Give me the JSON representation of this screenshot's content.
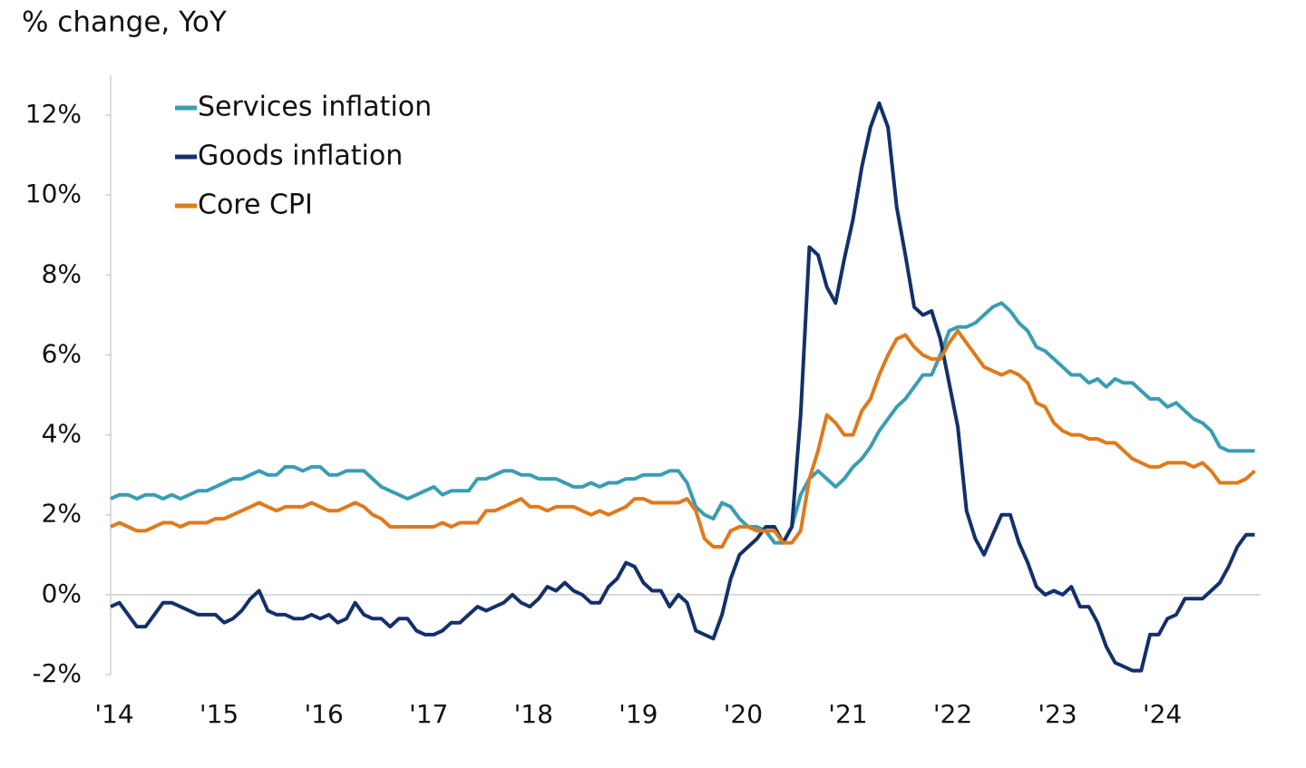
{
  "chart_data": {
    "type": "line",
    "title": "% change, YoY",
    "categories": [
      "'14",
      null,
      null,
      null,
      null,
      null,
      null,
      null,
      null,
      null,
      null,
      null,
      "'15",
      null,
      null,
      null,
      null,
      null,
      null,
      null,
      null,
      null,
      null,
      null,
      "'16",
      null,
      null,
      null,
      null,
      null,
      null,
      null,
      null,
      null,
      null,
      null,
      "'17",
      null,
      null,
      null,
      null,
      null,
      null,
      null,
      null,
      null,
      null,
      null,
      "'18",
      null,
      null,
      null,
      null,
      null,
      null,
      null,
      null,
      null,
      null,
      null,
      "'19",
      null,
      null,
      null,
      null,
      null,
      null,
      null,
      null,
      null,
      null,
      null,
      "'20",
      null,
      null,
      null,
      null,
      null,
      null,
      null,
      null,
      null,
      null,
      null,
      "'21",
      null,
      null,
      null,
      null,
      null,
      null,
      null,
      null,
      null,
      null,
      null,
      "'22",
      null,
      null,
      null,
      null,
      null,
      null,
      null,
      null,
      null,
      null,
      null,
      "'23",
      null,
      null,
      null,
      null,
      null,
      null,
      null,
      null,
      null,
      null,
      null,
      "'24",
      null,
      null,
      null,
      null,
      null,
      null,
      null,
      null,
      null,
      null,
      null
    ],
    "series": [
      {
        "name": "Services inflation",
        "color": "#3a9db4",
        "values": [
          2.4,
          2.5,
          2.5,
          2.4,
          2.5,
          2.5,
          2.4,
          2.5,
          2.4,
          2.5,
          2.6,
          2.6,
          2.7,
          2.8,
          2.9,
          2.9,
          3.0,
          3.1,
          3.0,
          3.0,
          3.2,
          3.2,
          3.1,
          3.2,
          3.2,
          3.0,
          3.0,
          3.1,
          3.1,
          3.1,
          2.9,
          2.7,
          2.6,
          2.5,
          2.4,
          2.5,
          2.6,
          2.7,
          2.5,
          2.6,
          2.6,
          2.6,
          2.9,
          2.9,
          3.0,
          3.1,
          3.1,
          3.0,
          3.0,
          2.9,
          2.9,
          2.9,
          2.8,
          2.7,
          2.7,
          2.8,
          2.7,
          2.8,
          2.8,
          2.9,
          2.9,
          3.0,
          3.0,
          3.0,
          3.1,
          3.1,
          2.8,
          2.2,
          2.0,
          1.9,
          2.3,
          2.2,
          1.9,
          1.7,
          1.7,
          1.6,
          1.3,
          1.3,
          1.7,
          2.5,
          2.9,
          3.1,
          2.9,
          2.7,
          2.9,
          3.2,
          3.4,
          3.7,
          4.1,
          4.4,
          4.7,
          4.9,
          5.2,
          5.5,
          5.5,
          6.0,
          6.6,
          6.7,
          6.7,
          6.8,
          7.0,
          7.2,
          7.3,
          7.1,
          6.8,
          6.6,
          6.2,
          6.1,
          5.9,
          5.7,
          5.5,
          5.5,
          5.3,
          5.4,
          5.2,
          5.4,
          5.3,
          5.3,
          5.1,
          4.9,
          4.9,
          4.7,
          4.8,
          4.6,
          4.4,
          4.3,
          4.1,
          3.7,
          3.6,
          3.6,
          3.6,
          3.6
        ]
      },
      {
        "name": "Goods inflation",
        "color": "#14306a",
        "values": [
          -0.3,
          -0.2,
          -0.5,
          -0.8,
          -0.8,
          -0.5,
          -0.2,
          -0.2,
          -0.3,
          -0.4,
          -0.5,
          -0.5,
          -0.5,
          -0.7,
          -0.6,
          -0.4,
          -0.1,
          0.1,
          -0.4,
          -0.5,
          -0.5,
          -0.6,
          -0.6,
          -0.5,
          -0.6,
          -0.5,
          -0.7,
          -0.6,
          -0.2,
          -0.5,
          -0.6,
          -0.6,
          -0.8,
          -0.6,
          -0.6,
          -0.9,
          -1.0,
          -1.0,
          -0.9,
          -0.7,
          -0.7,
          -0.5,
          -0.3,
          -0.4,
          -0.3,
          -0.2,
          0.0,
          -0.2,
          -0.3,
          -0.1,
          0.2,
          0.1,
          0.3,
          0.1,
          0.0,
          -0.2,
          -0.2,
          0.2,
          0.4,
          0.8,
          0.7,
          0.3,
          0.1,
          0.1,
          -0.3,
          0.0,
          -0.2,
          -0.9,
          -1.0,
          -1.1,
          -0.5,
          0.4,
          1.0,
          1.2,
          1.4,
          1.7,
          1.7,
          1.3,
          1.7,
          4.5,
          8.7,
          8.5,
          7.7,
          7.3,
          8.4,
          9.4,
          10.7,
          11.7,
          12.3,
          11.7,
          9.7,
          8.5,
          7.2,
          7.0,
          7.1,
          6.4,
          5.3,
          4.2,
          2.1,
          1.4,
          1.0,
          1.5,
          2.0,
          2.0,
          1.3,
          0.8,
          0.2,
          0.0,
          0.1,
          0.0,
          0.2,
          -0.3,
          -0.3,
          -0.7,
          -1.3,
          -1.7,
          -1.8,
          -1.9,
          -1.9,
          -1.0,
          -1.0,
          -0.6,
          -0.5,
          -0.1,
          -0.1,
          -0.1,
          0.1,
          0.3,
          0.7,
          1.2,
          1.5,
          1.5
        ]
      },
      {
        "name": "Core CPI",
        "color": "#df7a1c",
        "values": [
          1.7,
          1.8,
          1.7,
          1.6,
          1.6,
          1.7,
          1.8,
          1.8,
          1.7,
          1.8,
          1.8,
          1.8,
          1.9,
          1.9,
          2.0,
          2.1,
          2.2,
          2.3,
          2.2,
          2.1,
          2.2,
          2.2,
          2.2,
          2.3,
          2.2,
          2.1,
          2.1,
          2.2,
          2.3,
          2.2,
          2.0,
          1.9,
          1.7,
          1.7,
          1.7,
          1.7,
          1.7,
          1.7,
          1.8,
          1.7,
          1.8,
          1.8,
          1.8,
          2.1,
          2.1,
          2.2,
          2.3,
          2.4,
          2.2,
          2.2,
          2.1,
          2.2,
          2.2,
          2.2,
          2.1,
          2.0,
          2.1,
          2.0,
          2.1,
          2.2,
          2.4,
          2.4,
          2.3,
          2.3,
          2.3,
          2.3,
          2.4,
          2.1,
          1.4,
          1.2,
          1.2,
          1.6,
          1.7,
          1.7,
          1.6,
          1.6,
          1.6,
          1.3,
          1.3,
          1.6,
          2.9,
          3.6,
          4.5,
          4.3,
          4.0,
          4.0,
          4.6,
          4.9,
          5.5,
          6.0,
          6.4,
          6.5,
          6.2,
          6.0,
          5.9,
          5.9,
          6.3,
          6.6,
          6.3,
          6.0,
          5.7,
          5.6,
          5.5,
          5.6,
          5.5,
          5.3,
          4.8,
          4.7,
          4.3,
          4.1,
          4.0,
          4.0,
          3.9,
          3.9,
          3.8,
          3.8,
          3.6,
          3.4,
          3.3,
          3.2,
          3.2,
          3.3,
          3.3,
          3.3,
          3.2,
          3.3,
          3.1,
          2.8,
          2.8,
          2.8,
          2.9,
          3.1
        ]
      }
    ],
    "ylim": [
      -2,
      13
    ],
    "yticks": [
      {
        "value": -2,
        "label": "-2%"
      },
      {
        "value": 0,
        "label": "0%"
      },
      {
        "value": 2,
        "label": "2%"
      },
      {
        "value": 4,
        "label": "4%"
      },
      {
        "value": 6,
        "label": "6%"
      },
      {
        "value": 8,
        "label": "8%"
      },
      {
        "value": 10,
        "label": "10%"
      },
      {
        "value": 12,
        "label": "12%"
      }
    ],
    "grid": false,
    "legend": "upper left"
  }
}
